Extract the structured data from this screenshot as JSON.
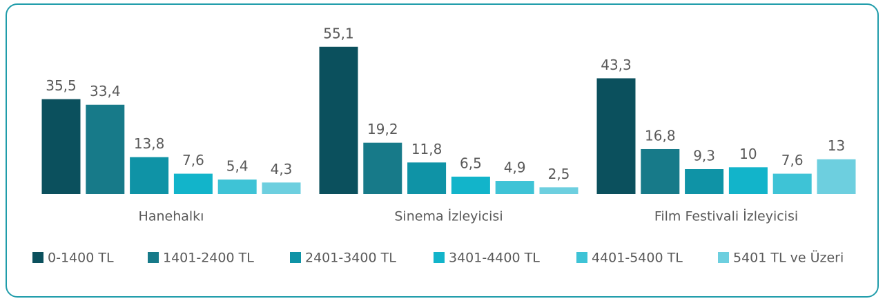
{
  "chart_data": {
    "type": "bar",
    "categories": [
      "Hanehalkı",
      "Sinema İzleyicisi",
      "Film Festivali İzleyicisi"
    ],
    "series": [
      {
        "name": "0-1400 TL",
        "color": "#0b505d",
        "values": [
          35.5,
          55.1,
          43.3
        ],
        "value_labels": [
          "35,5",
          "55,1",
          "43,3"
        ]
      },
      {
        "name": "1401-2400 TL",
        "color": "#177a89",
        "values": [
          33.4,
          19.2,
          16.8
        ],
        "value_labels": [
          "33,4",
          "19,2",
          "16,8"
        ]
      },
      {
        "name": "2401-3400 TL",
        "color": "#0f93a6",
        "values": [
          13.8,
          11.8,
          9.3
        ],
        "value_labels": [
          "13,8",
          "11,8",
          "9,3"
        ]
      },
      {
        "name": "3401-4400 TL",
        "color": "#12b4ca",
        "values": [
          7.6,
          6.5,
          10
        ],
        "value_labels": [
          "7,6",
          "6,5",
          "10"
        ]
      },
      {
        "name": "4401-5400 TL",
        "color": "#3ec3d6",
        "values": [
          5.4,
          4.9,
          7.6
        ],
        "value_labels": [
          "5,4",
          "4,9",
          "7,6"
        ]
      },
      {
        "name": "5401 TL ve Üzeri",
        "color": "#6dcfdf",
        "values": [
          4.3,
          2.5,
          13
        ],
        "value_labels": [
          "4,3",
          "2,5",
          "13"
        ]
      }
    ]
  }
}
